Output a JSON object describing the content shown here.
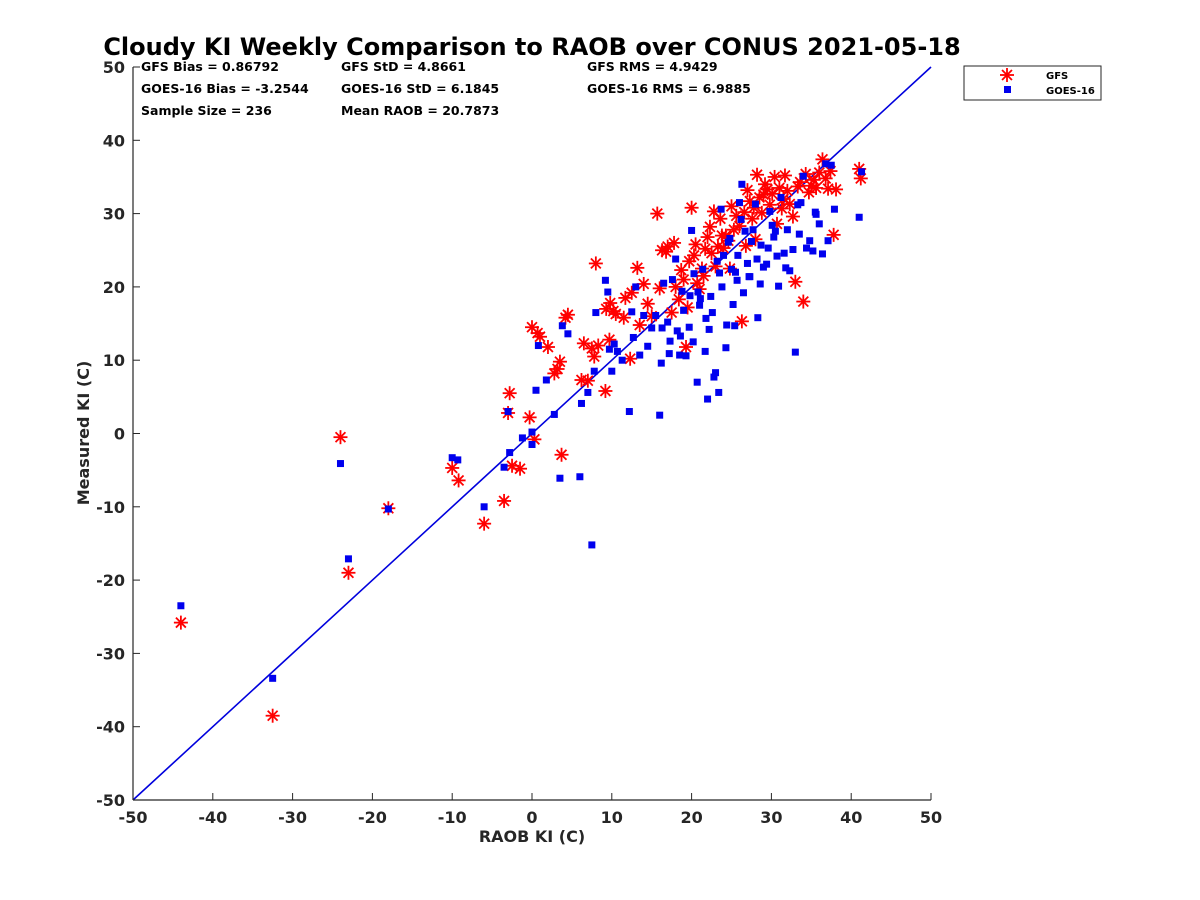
{
  "chart_data": {
    "type": "scatter",
    "title": "Cloudy KI Weekly Comparison to RAOB over CONUS 2021-05-18",
    "xlabel": "RAOB KI (C)",
    "ylabel": "Measured KI (C)",
    "xlim": [
      -50,
      50
    ],
    "ylim": [
      -50,
      50
    ],
    "xticks": [
      "-50",
      "-40",
      "-30",
      "-20",
      "-10",
      "0",
      "10",
      "20",
      "30",
      "40",
      "50"
    ],
    "yticks": [
      "-50",
      "-40",
      "-30",
      "-20",
      "-10",
      "0",
      "10",
      "20",
      "30",
      "40",
      "50"
    ],
    "grid": false,
    "legend_position": "outside-top-right",
    "reference_line": {
      "x": [
        -50,
        50
      ],
      "y": [
        -50,
        50
      ],
      "color": "#0000dd"
    },
    "stats": [
      [
        "GFS Bias = 0.86792",
        "GFS StD = 4.8661",
        "GFS RMS = 4.9429"
      ],
      [
        "GOES-16 Bias = -3.2544",
        "GOES-16 StD = 6.1845",
        "GOES-16 RMS = 6.9885"
      ],
      [
        "Sample Size = 236",
        "Mean RAOB = 20.7873",
        ""
      ]
    ],
    "series": [
      {
        "name": "GFS",
        "marker": "asterisk",
        "color": "#ff0000",
        "points": [
          [
            -44,
            -25.8
          ],
          [
            -32.5,
            -38.5
          ],
          [
            -24,
            -0.5
          ],
          [
            -23,
            -19
          ],
          [
            -18,
            -10.2
          ],
          [
            -10,
            -4.7
          ],
          [
            -9.2,
            -6.4
          ],
          [
            -6,
            -12.3
          ],
          [
            -3.5,
            -9.2
          ],
          [
            -3,
            2.8
          ],
          [
            -2.8,
            5.5
          ],
          [
            -2.5,
            -4.4
          ],
          [
            -1.5,
            -4.8
          ],
          [
            -0.3,
            2.2
          ],
          [
            0,
            14.5
          ],
          [
            0.3,
            -0.8
          ],
          [
            0.7,
            13.7
          ],
          [
            1,
            13.2
          ],
          [
            2,
            11.8
          ],
          [
            2.8,
            8.2
          ],
          [
            3.2,
            8.8
          ],
          [
            3.5,
            9.8
          ],
          [
            3.7,
            -2.9
          ],
          [
            4.2,
            15.8
          ],
          [
            4.5,
            16.2
          ],
          [
            6.2,
            7.3
          ],
          [
            6.5,
            12.3
          ],
          [
            7,
            7.2
          ],
          [
            7.5,
            11.6
          ],
          [
            7.8,
            10.5
          ],
          [
            8,
            23.2
          ],
          [
            8.3,
            12
          ],
          [
            9.2,
            5.8
          ],
          [
            9.3,
            17
          ],
          [
            9.7,
            12.8
          ],
          [
            9.8,
            17.8
          ],
          [
            10.2,
            16.7
          ],
          [
            10.5,
            16.3
          ],
          [
            11.5,
            15.8
          ],
          [
            11.7,
            18.5
          ],
          [
            12.3,
            10.2
          ],
          [
            12.5,
            19.2
          ],
          [
            13.2,
            22.6
          ],
          [
            13.5,
            14.8
          ],
          [
            14,
            20.4
          ],
          [
            14.5,
            17.7
          ],
          [
            15,
            16
          ],
          [
            15.7,
            30
          ],
          [
            16,
            19.8
          ],
          [
            16.3,
            25
          ],
          [
            16.8,
            24.8
          ],
          [
            17,
            25.5
          ],
          [
            17.5,
            16.5
          ],
          [
            17.8,
            26
          ],
          [
            18,
            20
          ],
          [
            18.4,
            18.3
          ],
          [
            18.7,
            22.3
          ],
          [
            19,
            21
          ],
          [
            19.3,
            11.8
          ],
          [
            19.7,
            23.5
          ],
          [
            20,
            30.8
          ],
          [
            20.3,
            24.3
          ],
          [
            20.7,
            20.5
          ],
          [
            21,
            19.7
          ],
          [
            21.3,
            22.5
          ],
          [
            21.7,
            25.2
          ],
          [
            22,
            26.8
          ],
          [
            22.3,
            28.2
          ],
          [
            22.5,
            24.6
          ],
          [
            22.8,
            30.3
          ],
          [
            23,
            22.8
          ],
          [
            23.3,
            25.5
          ],
          [
            23.6,
            29.3
          ],
          [
            24,
            25.3
          ],
          [
            24.3,
            27
          ],
          [
            24.6,
            26.3
          ],
          [
            25,
            31
          ],
          [
            25.3,
            27.8
          ],
          [
            25.6,
            29.7
          ],
          [
            26,
            28.3
          ],
          [
            26.3,
            15.3
          ],
          [
            26.6,
            30.2
          ],
          [
            27,
            33.2
          ],
          [
            27.3,
            31.7
          ],
          [
            27.6,
            29.3
          ],
          [
            28,
            26.5
          ],
          [
            28.2,
            35.3
          ],
          [
            28.5,
            32.2
          ],
          [
            28.8,
            30.1
          ],
          [
            29.2,
            34
          ],
          [
            29.5,
            33.3
          ],
          [
            29.8,
            31.2
          ],
          [
            30.1,
            32.7
          ],
          [
            30.4,
            35
          ],
          [
            30.7,
            28.6
          ],
          [
            31,
            33.5
          ],
          [
            31.3,
            30.7
          ],
          [
            31.7,
            35.2
          ],
          [
            32,
            33.1
          ],
          [
            32.3,
            31.3
          ],
          [
            32.7,
            29.6
          ],
          [
            33,
            20.7
          ],
          [
            33.3,
            33.7
          ],
          [
            33.6,
            34.3
          ],
          [
            34,
            18
          ],
          [
            34.3,
            35.4
          ],
          [
            34.7,
            32.9
          ],
          [
            35,
            33.8
          ],
          [
            35.3,
            34.6
          ],
          [
            35.6,
            33.5
          ],
          [
            36,
            35.6
          ],
          [
            36.4,
            37.4
          ],
          [
            36.8,
            34.8
          ],
          [
            37.1,
            33.4
          ],
          [
            37.4,
            35.8
          ],
          [
            37.8,
            27.1
          ],
          [
            38.1,
            33.3
          ],
          [
            41,
            36.1
          ],
          [
            41.2,
            34.8
          ],
          [
            19.5,
            17.2
          ],
          [
            21.5,
            21.5
          ],
          [
            23.8,
            27
          ],
          [
            26.8,
            25.6
          ],
          [
            29,
            32.6
          ],
          [
            24.8,
            22.5
          ],
          [
            20.5,
            25.8
          ],
          [
            27.8,
            30.8
          ],
          [
            31.5,
            32
          ]
        ]
      },
      {
        "name": "GOES-16",
        "marker": "square",
        "color": "#0000ee",
        "points": [
          [
            -44,
            -23.5
          ],
          [
            -32.5,
            -33.4
          ],
          [
            -24,
            -4.1
          ],
          [
            -23,
            -17.1
          ],
          [
            -18,
            -10.3
          ],
          [
            -10,
            -3.3
          ],
          [
            -9.3,
            -3.6
          ],
          [
            -6,
            -10
          ],
          [
            -3.5,
            -4.6
          ],
          [
            -3,
            3
          ],
          [
            -2.8,
            -2.6
          ],
          [
            -1.2,
            -0.6
          ],
          [
            0,
            0.2
          ],
          [
            0,
            -1.5
          ],
          [
            0.5,
            5.9
          ],
          [
            0.8,
            12
          ],
          [
            1.8,
            7.3
          ],
          [
            2.8,
            2.6
          ],
          [
            3.5,
            -6.1
          ],
          [
            3.8,
            14.7
          ],
          [
            4.5,
            13.6
          ],
          [
            6,
            -5.9
          ],
          [
            6.2,
            4.1
          ],
          [
            7,
            5.6
          ],
          [
            7.5,
            -15.2
          ],
          [
            7.8,
            8.5
          ],
          [
            8,
            16.5
          ],
          [
            9.2,
            20.9
          ],
          [
            9.5,
            19.3
          ],
          [
            9.7,
            11.5
          ],
          [
            10,
            8.5
          ],
          [
            10.3,
            12.2
          ],
          [
            10.7,
            11.2
          ],
          [
            11.3,
            10
          ],
          [
            12.2,
            3
          ],
          [
            12.5,
            16.6
          ],
          [
            12.7,
            13.1
          ],
          [
            13,
            20
          ],
          [
            13.5,
            10.7
          ],
          [
            14,
            16.1
          ],
          [
            14.5,
            11.9
          ],
          [
            15,
            14.4
          ],
          [
            15.5,
            16.1
          ],
          [
            16,
            2.5
          ],
          [
            16.2,
            9.6
          ],
          [
            16.5,
            20.5
          ],
          [
            17,
            15.2
          ],
          [
            17.3,
            12.6
          ],
          [
            17.6,
            21
          ],
          [
            18,
            23.8
          ],
          [
            18.5,
            10.7
          ],
          [
            18.8,
            19.4
          ],
          [
            19.3,
            10.6
          ],
          [
            19.7,
            14.5
          ],
          [
            20,
            27.7
          ],
          [
            20.3,
            21.8
          ],
          [
            20.7,
            7
          ],
          [
            21.1,
            18.4
          ],
          [
            21.4,
            22.4
          ],
          [
            21.7,
            11.2
          ],
          [
            22,
            4.7
          ],
          [
            22.4,
            18.7
          ],
          [
            22.8,
            7.7
          ],
          [
            23,
            8.3
          ],
          [
            23.4,
            5.6
          ],
          [
            23.7,
            30.6
          ],
          [
            24,
            24.3
          ],
          [
            24.3,
            11.7
          ],
          [
            24.6,
            26.1
          ],
          [
            25,
            22.4
          ],
          [
            25.4,
            14.7
          ],
          [
            25.7,
            20.9
          ],
          [
            26,
            31.5
          ],
          [
            26.3,
            34
          ],
          [
            26.7,
            27.6
          ],
          [
            27,
            23.2
          ],
          [
            27.3,
            21.4
          ],
          [
            27.7,
            27.8
          ],
          [
            28,
            31.3
          ],
          [
            28.3,
            15.8
          ],
          [
            28.7,
            25.7
          ],
          [
            29,
            22.7
          ],
          [
            29.4,
            23.1
          ],
          [
            29.8,
            30.3
          ],
          [
            30.1,
            28.4
          ],
          [
            30.5,
            27.6
          ],
          [
            30.9,
            20.1
          ],
          [
            31.2,
            32.2
          ],
          [
            31.6,
            24.6
          ],
          [
            32,
            27.8
          ],
          [
            32.3,
            22.2
          ],
          [
            32.7,
            25.1
          ],
          [
            33,
            11.1
          ],
          [
            33.3,
            31.2
          ],
          [
            33.7,
            31.5
          ],
          [
            34,
            35.1
          ],
          [
            34.4,
            25.3
          ],
          [
            34.8,
            26.3
          ],
          [
            35.2,
            24.9
          ],
          [
            35.6,
            29.9
          ],
          [
            36,
            28.6
          ],
          [
            36.4,
            24.5
          ],
          [
            36.8,
            36.8
          ],
          [
            37.1,
            26.3
          ],
          [
            37.5,
            36.6
          ],
          [
            37.9,
            30.6
          ],
          [
            41,
            29.5
          ],
          [
            41.3,
            35.7
          ],
          [
            19,
            16.8
          ],
          [
            21,
            17.5
          ],
          [
            23.5,
            21.9
          ],
          [
            25.2,
            17.6
          ],
          [
            26.5,
            19.2
          ],
          [
            27.2,
            21.4
          ],
          [
            28.6,
            20.4
          ],
          [
            22.2,
            14.2
          ],
          [
            24.8,
            26.6
          ],
          [
            26.2,
            29.2
          ],
          [
            29.6,
            25.3
          ],
          [
            31.8,
            22.6
          ],
          [
            17.2,
            10.9
          ],
          [
            20.2,
            12.5
          ],
          [
            22.6,
            16.5
          ],
          [
            24.4,
            14.8
          ],
          [
            18.2,
            14
          ],
          [
            20.8,
            19.3
          ],
          [
            23.2,
            23.5
          ],
          [
            25.8,
            24.3
          ],
          [
            27.5,
            26.2
          ],
          [
            30.3,
            26.8
          ],
          [
            33.5,
            27.2
          ],
          [
            35.5,
            30.2
          ],
          [
            16.3,
            14.4
          ],
          [
            18.6,
            13.3
          ],
          [
            19.8,
            18.8
          ],
          [
            21.8,
            15.7
          ],
          [
            23.8,
            20
          ],
          [
            25.5,
            22
          ],
          [
            28.2,
            23.8
          ],
          [
            30.7,
            24.2
          ]
        ]
      }
    ]
  }
}
